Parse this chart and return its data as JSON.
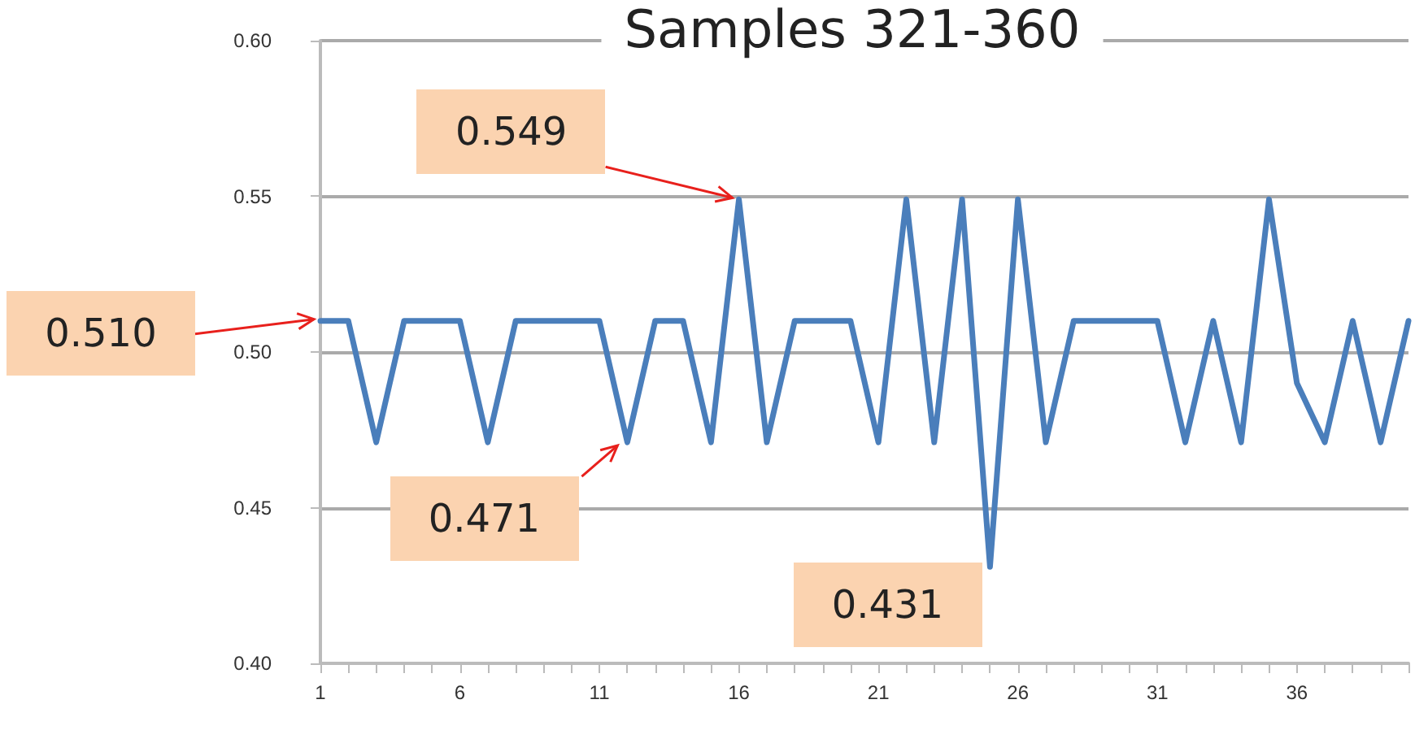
{
  "chart_data": {
    "type": "line",
    "title": "Samples 321-360",
    "x": [
      1,
      2,
      3,
      4,
      5,
      6,
      7,
      8,
      9,
      10,
      11,
      12,
      13,
      14,
      15,
      16,
      17,
      18,
      19,
      20,
      21,
      22,
      23,
      24,
      25,
      26,
      27,
      28,
      29,
      30,
      31,
      32,
      33,
      34,
      35,
      36,
      37,
      38,
      39,
      40
    ],
    "series": [
      {
        "color": "#4a7ebb",
        "values": [
          0.51,
          0.51,
          0.471,
          0.51,
          0.51,
          0.51,
          0.471,
          0.51,
          0.51,
          0.51,
          0.51,
          0.471,
          0.51,
          0.51,
          0.471,
          0.549,
          0.471,
          0.51,
          0.51,
          0.51,
          0.471,
          0.549,
          0.471,
          0.549,
          0.431,
          0.549,
          0.471,
          0.51,
          0.51,
          0.51,
          0.51,
          0.471,
          0.51,
          0.471,
          0.549,
          0.49,
          0.471,
          0.51,
          0.471,
          0.51
        ]
      }
    ],
    "xlim": [
      1,
      40
    ],
    "xticks": [
      1,
      {
        "value": 2,
        "label": null
      },
      {
        "value": 3,
        "label": null
      },
      {
        "value": 4,
        "label": null
      },
      {
        "value": 5,
        "label": null
      },
      6,
      {
        "value": 7,
        "label": null
      },
      {
        "value": 8,
        "label": null
      },
      {
        "value": 9,
        "label": null
      },
      {
        "value": 10,
        "label": null
      },
      11,
      {
        "value": 12,
        "label": null
      },
      {
        "value": 13,
        "label": null
      },
      {
        "value": 14,
        "label": null
      },
      {
        "value": 15,
        "label": null
      },
      16,
      {
        "value": 17,
        "label": null
      },
      {
        "value": 18,
        "label": null
      },
      {
        "value": 19,
        "label": null
      },
      {
        "value": 20,
        "label": null
      },
      21,
      {
        "value": 22,
        "label": null
      },
      {
        "value": 23,
        "label": null
      },
      {
        "value": 24,
        "label": null
      },
      {
        "value": 25,
        "label": null
      },
      26,
      {
        "value": 27,
        "label": null
      },
      {
        "value": 28,
        "label": null
      },
      {
        "value": 29,
        "label": null
      },
      {
        "value": 30,
        "label": null
      },
      31,
      {
        "value": 32,
        "label": null
      },
      {
        "value": 33,
        "label": null
      },
      {
        "value": 34,
        "label": null
      },
      {
        "value": 35,
        "label": null
      },
      36,
      {
        "value": 37,
        "label": null
      },
      {
        "value": 38,
        "label": null
      },
      {
        "value": 39,
        "label": null
      },
      {
        "value": 40,
        "label": null
      }
    ],
    "ylim": [
      0.4,
      0.6
    ],
    "yticks": [
      {
        "value": 0.4,
        "label": "0.40"
      },
      {
        "value": 0.45,
        "label": "0.45"
      },
      {
        "value": 0.5,
        "label": "0.50"
      },
      {
        "value": 0.55,
        "label": "0.55"
      },
      {
        "value": 0.6,
        "label": "0.60"
      }
    ],
    "grid": "y",
    "marker": "none",
    "line_style": "solid",
    "annotations": [
      {
        "text": "0.510",
        "x": 1,
        "y": 0.51
      },
      {
        "text": "0.549",
        "x": 16,
        "y": 0.549
      },
      {
        "text": "0.471",
        "x": 12,
        "y": 0.471
      },
      {
        "text": "0.431",
        "x": 25,
        "y": 0.431
      }
    ]
  }
}
